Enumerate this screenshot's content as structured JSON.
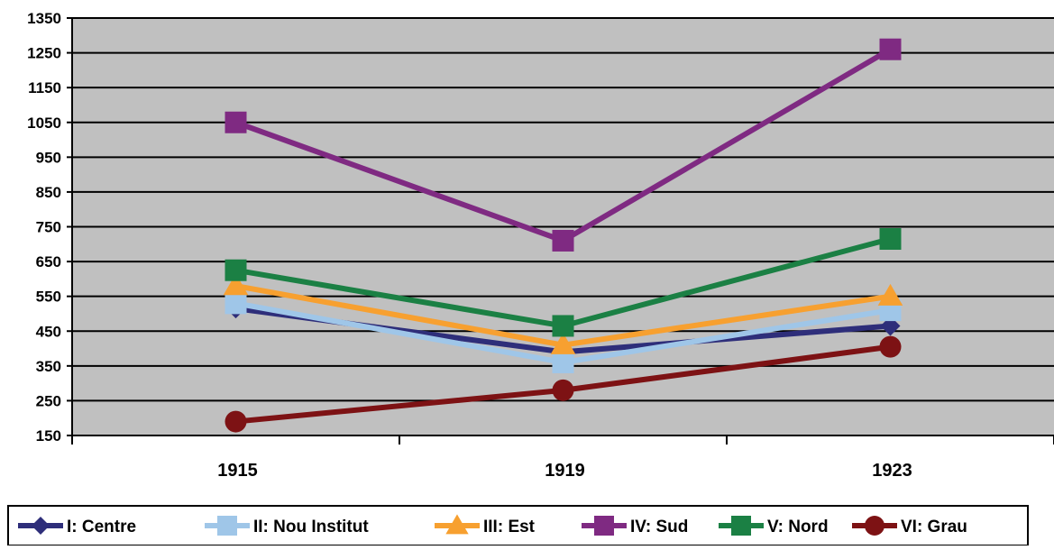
{
  "chart_data": {
    "type": "line",
    "title": "",
    "xlabel": "",
    "ylabel": "",
    "categories": [
      "1915",
      "1919",
      "1923"
    ],
    "ylim": [
      150,
      1350
    ],
    "yticks": [
      "150",
      "250",
      "350",
      "450",
      "550",
      "650",
      "750",
      "850",
      "950",
      "1050",
      "1150",
      "1250",
      "1350"
    ],
    "grid": true,
    "plot_background": "#c0c0c0",
    "legend_position": "bottom",
    "series": [
      {
        "name": "I: Centre",
        "values": [
          515,
          390,
          465
        ],
        "color": "#2e2e7a",
        "marker": "diamond"
      },
      {
        "name": "II: Nou Institut",
        "values": [
          530,
          360,
          510
        ],
        "color": "#9fc6e8",
        "marker": "square"
      },
      {
        "name": "III: Est",
        "values": [
          580,
          410,
          550
        ],
        "color": "#f7a030",
        "marker": "triangle"
      },
      {
        "name": "IV: Sud",
        "values": [
          1050,
          710,
          1260
        ],
        "color": "#7f2a82",
        "marker": "square"
      },
      {
        "name": "V: Nord",
        "values": [
          625,
          465,
          715
        ],
        "color": "#1b8044",
        "marker": "square"
      },
      {
        "name": "VI: Grau",
        "values": [
          190,
          280,
          405
        ],
        "color": "#7d1214",
        "marker": "circle"
      }
    ]
  }
}
